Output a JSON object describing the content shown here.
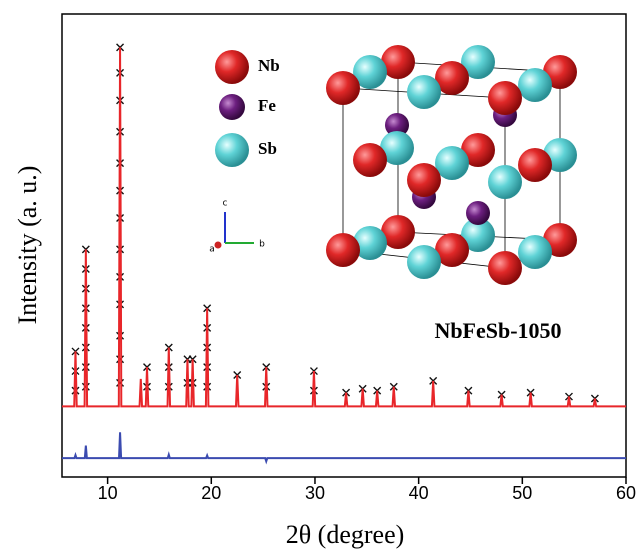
{
  "chart_data": {
    "type": "line",
    "x_label": "2θ (degree)",
    "y_label": "Intensity (a. u.)",
    "annotation": "NbFeSb-1050",
    "atom_legend": [
      "Nb",
      "Fe",
      "Sb"
    ],
    "axis_triad": [
      "c",
      "a",
      "b"
    ],
    "xlim": [
      5.6,
      60
    ],
    "ylim": [
      -18,
      100
    ],
    "xticks": [
      10,
      20,
      30,
      40,
      50,
      60
    ],
    "series": [
      {
        "color": "#111111",
        "marker": "x",
        "x": [
          6.9,
          6.9,
          6.9,
          7.9,
          7.9,
          7.9,
          7.9,
          7.9,
          7.9,
          7.9,
          7.9,
          11.2,
          11.2,
          11.2,
          11.2,
          11.2,
          11.2,
          11.2,
          11.2,
          11.2,
          11.2,
          11.2,
          11.2,
          11.2,
          13.8,
          13.8,
          15.9,
          15.9,
          15.9,
          17.7,
          17.7,
          18.2,
          18.2,
          19.6,
          19.6,
          19.6,
          19.6,
          19.6,
          22.5,
          25.3,
          25.3,
          29.9,
          29.9,
          33,
          34.6,
          36,
          37.6,
          41.4,
          44.8,
          48,
          50.8,
          54.5,
          57
        ],
        "values": [
          14,
          9,
          4,
          40,
          35,
          30,
          25,
          20,
          15,
          10,
          5,
          91.5,
          85,
          78,
          70,
          62,
          55,
          48,
          40,
          33,
          26,
          18,
          12,
          6,
          10,
          5,
          15,
          10,
          5,
          12,
          6,
          12,
          6,
          25,
          20,
          15,
          10,
          5,
          8,
          10,
          5,
          9,
          4,
          3.5,
          4.5,
          4,
          5,
          6.5,
          4,
          3,
          3.5,
          2.5,
          2
        ]
      },
      {
        "color": "#e8262a",
        "marker": "line",
        "x": [
          5.6,
          6.78,
          6.9,
          7.02,
          7.78,
          7.9,
          8.02,
          11.08,
          11.2,
          11.32,
          13.08,
          13.2,
          13.32,
          13.68,
          13.8,
          13.92,
          15.78,
          15.9,
          16.02,
          17.58,
          17.7,
          17.82,
          18.08,
          18.2,
          18.32,
          19.48,
          19.6,
          19.72,
          22.38,
          22.5,
          22.62,
          25.18,
          25.3,
          25.42,
          29.78,
          29.9,
          30.02,
          32.88,
          33,
          33.12,
          34.48,
          34.6,
          34.72,
          35.88,
          36,
          36.12,
          37.48,
          37.6,
          37.72,
          41.28,
          41.4,
          41.52,
          44.68,
          44.8,
          44.92,
          47.88,
          48,
          48.12,
          50.68,
          50.8,
          50.92,
          54.38,
          54.5,
          54.62,
          56.88,
          57,
          57.12,
          60
        ],
        "values": [
          0,
          0,
          14,
          0,
          0,
          40,
          0,
          0,
          91.5,
          0,
          0,
          7,
          0,
          0,
          10,
          0,
          0,
          15,
          0,
          0,
          12,
          0,
          0,
          12,
          0,
          0,
          25,
          0,
          0,
          8,
          0,
          0,
          10,
          0,
          0,
          9,
          0,
          0,
          3.5,
          0,
          0,
          4.5,
          0,
          0,
          4,
          0,
          0,
          5,
          0,
          0,
          6.5,
          0,
          0,
          4,
          0,
          0,
          3,
          0,
          0,
          3.5,
          0,
          0,
          2.5,
          0,
          0,
          2,
          0,
          0
        ]
      },
      {
        "color": "#3b4bb0",
        "marker": "line",
        "x": [
          5.6,
          6.8,
          6.9,
          7.0,
          7.8,
          7.9,
          8.0,
          11.1,
          11.2,
          11.3,
          15.8,
          15.9,
          16.0,
          19.5,
          19.6,
          19.7,
          25.2,
          25.3,
          25.4,
          60
        ],
        "values": [
          -13.2,
          -13.2,
          -12.4,
          -13.2,
          -13.2,
          -10,
          -13.2,
          -13.2,
          -6.6,
          -13.2,
          -13.2,
          -12.3,
          -13.2,
          -13.2,
          -12.5,
          -13.2,
          -13.2,
          -14,
          -13.2,
          -13.2
        ]
      }
    ]
  }
}
